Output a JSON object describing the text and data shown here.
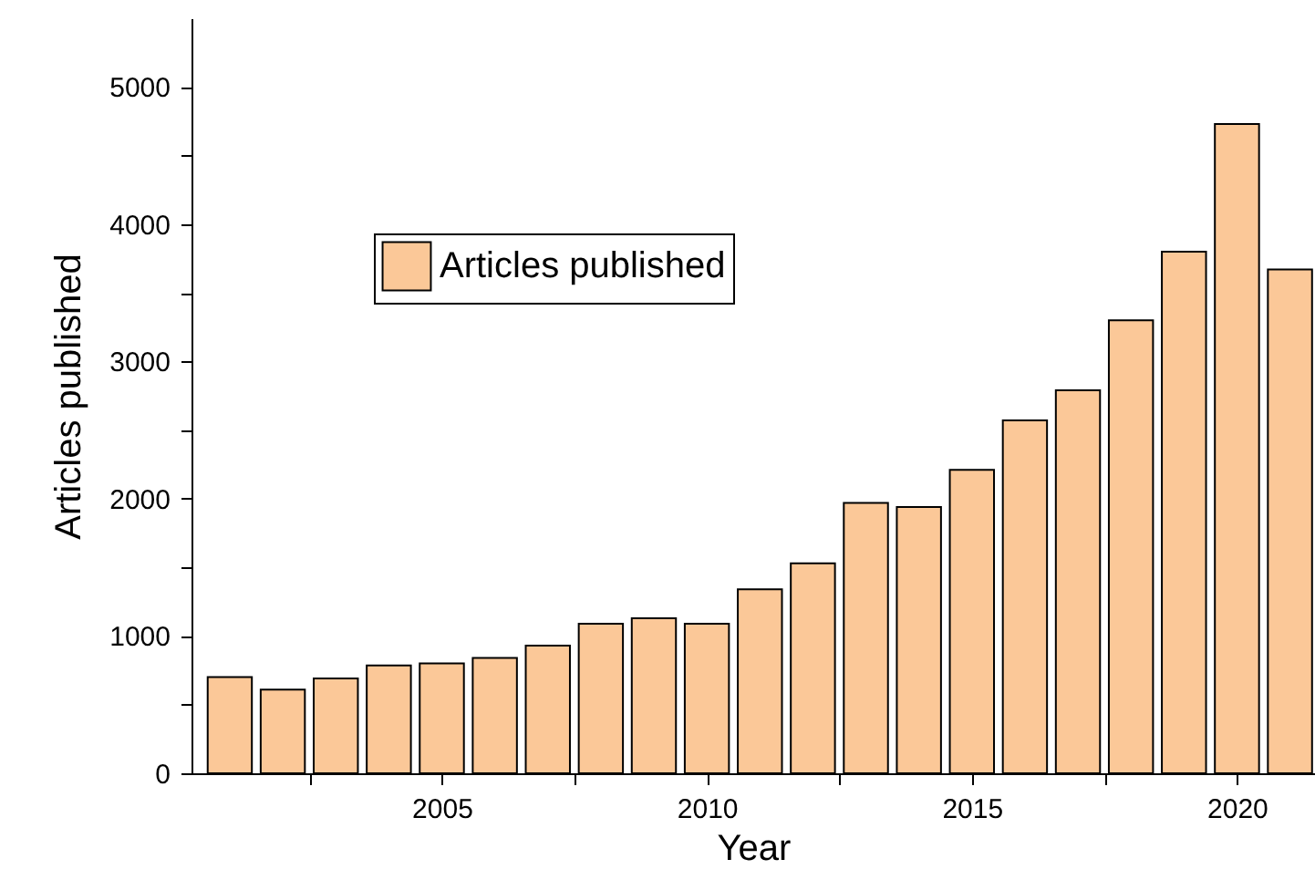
{
  "chart_data": {
    "type": "bar",
    "xlabel": "Year",
    "ylabel": "Articles published",
    "x": [
      2001,
      2002,
      2003,
      2004,
      2005,
      2006,
      2007,
      2008,
      2009,
      2010,
      2011,
      2012,
      2013,
      2014,
      2015,
      2016,
      2017,
      2018,
      2019,
      2020,
      2021
    ],
    "series": [
      {
        "name": "Articles published",
        "color": "#fbc898",
        "values": [
          700,
          610,
          690,
          785,
          800,
          840,
          930,
          1090,
          1130,
          1090,
          1340,
          1530,
          1970,
          1940,
          2210,
          2570,
          2790,
          3300,
          3800,
          4730,
          3670
        ]
      }
    ],
    "xlim": [
      2000.45,
      2021.3
    ],
    "ylim": [
      0,
      5500
    ],
    "xticks": [
      {
        "value": 2002.5,
        "label": null
      },
      2005,
      {
        "value": 2007.5,
        "label": null
      },
      2010,
      {
        "value": 2012.5,
        "label": null
      },
      2015,
      {
        "value": 2017.5,
        "label": null
      },
      2020
    ],
    "yticks": [
      0,
      {
        "value": 500,
        "label": null
      },
      1000,
      {
        "value": 1500,
        "label": null
      },
      2000,
      {
        "value": 2500,
        "label": null
      },
      3000,
      {
        "value": 3500,
        "label": null
      },
      4000,
      {
        "value": 4500,
        "label": null
      },
      5000
    ],
    "grid": false,
    "legend": "top left"
  }
}
